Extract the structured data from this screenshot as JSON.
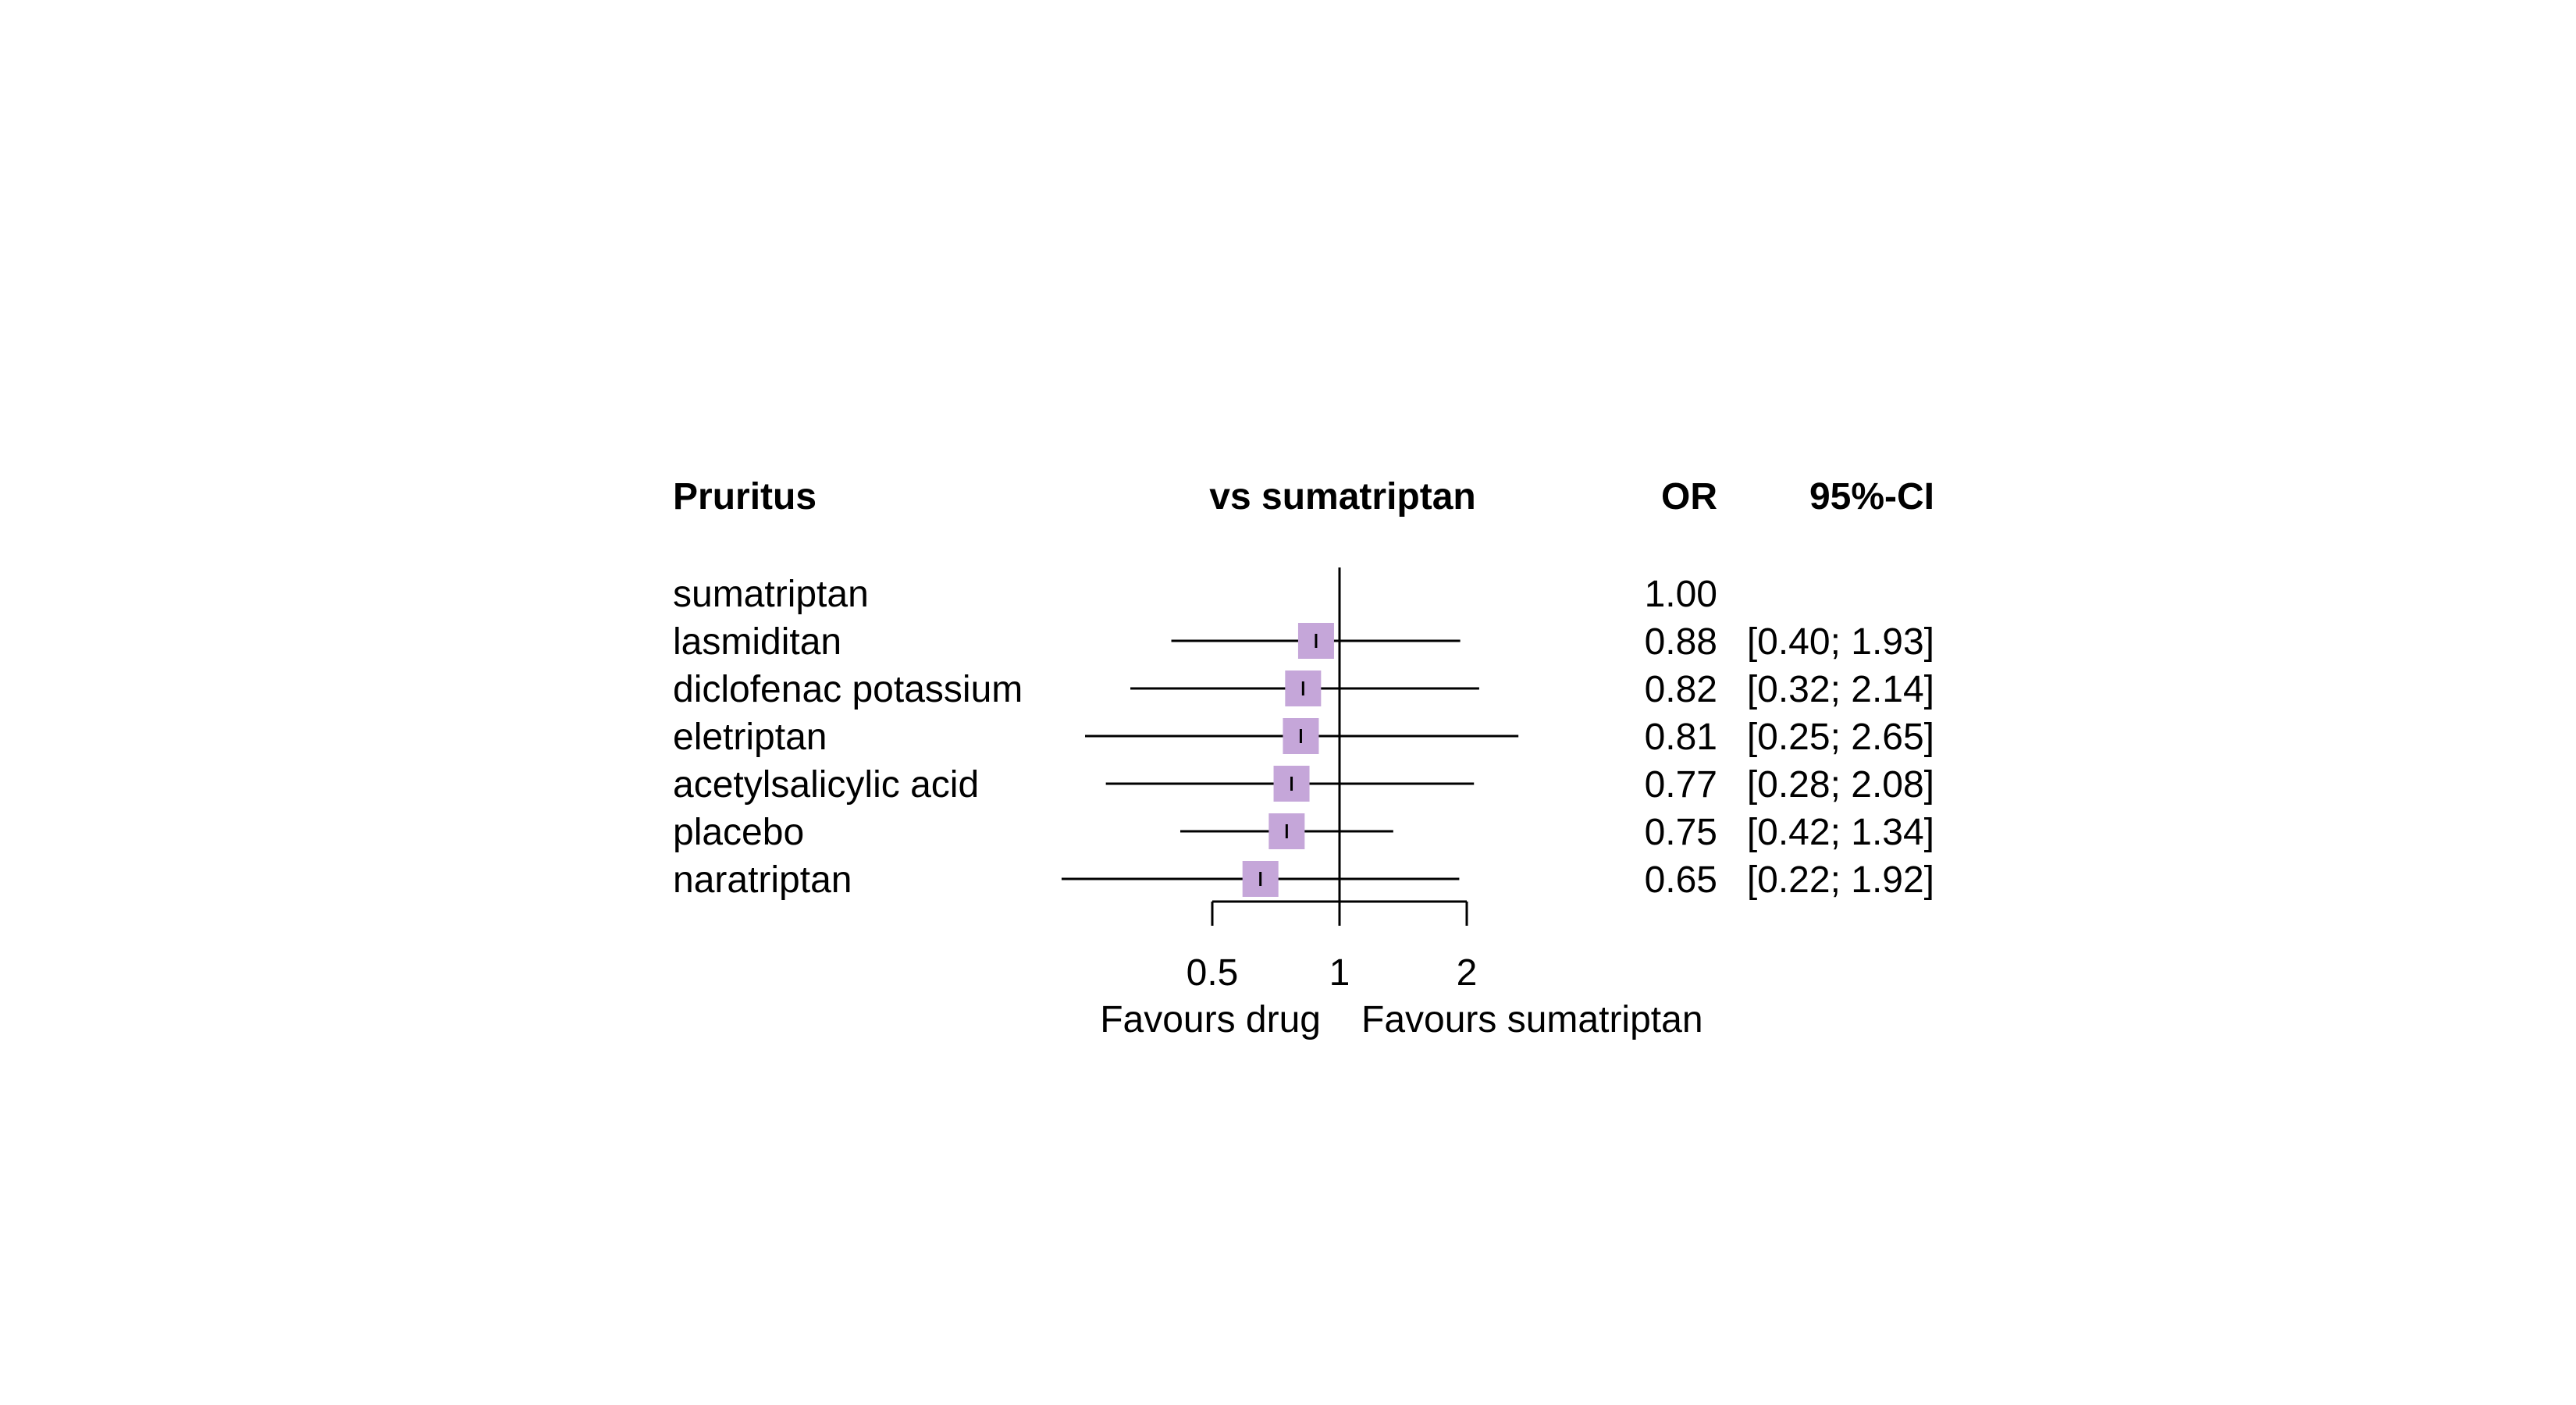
{
  "chart_data": {
    "type": "forest",
    "title": "Pruritus",
    "comparison_header": "vs sumatriptan",
    "or_header": "OR",
    "ci_header": "95%-CI",
    "scale": "log",
    "reference_value": 1,
    "x_ticks": [
      0.5,
      1,
      2
    ],
    "x_tick_labels": [
      "0.5",
      "1",
      "2"
    ],
    "favours_left": "Favours drug",
    "favours_right": "Favours sumatriptan",
    "square_color": "#c5a6d9",
    "rows": [
      {
        "name": "sumatriptan",
        "or": null,
        "lower": null,
        "upper": null,
        "or_label": "1.00",
        "ci_label": ""
      },
      {
        "name": "lasmiditan",
        "or": 0.88,
        "lower": 0.4,
        "upper": 1.93,
        "or_label": "0.88",
        "ci_label": "[0.40; 1.93]"
      },
      {
        "name": "diclofenac potassium",
        "or": 0.82,
        "lower": 0.32,
        "upper": 2.14,
        "or_label": "0.82",
        "ci_label": "[0.32; 2.14]"
      },
      {
        "name": "eletriptan",
        "or": 0.81,
        "lower": 0.25,
        "upper": 2.65,
        "or_label": "0.81",
        "ci_label": "[0.25; 2.65]"
      },
      {
        "name": "acetylsalicylic acid",
        "or": 0.77,
        "lower": 0.28,
        "upper": 2.08,
        "or_label": "0.77",
        "ci_label": "[0.28; 2.08]"
      },
      {
        "name": "placebo",
        "or": 0.75,
        "lower": 0.42,
        "upper": 1.34,
        "or_label": "0.75",
        "ci_label": "[0.42; 1.34]"
      },
      {
        "name": "naratriptan",
        "or": 0.65,
        "lower": 0.22,
        "upper": 1.92,
        "or_label": "0.65",
        "ci_label": "[0.22; 1.92]"
      }
    ]
  }
}
